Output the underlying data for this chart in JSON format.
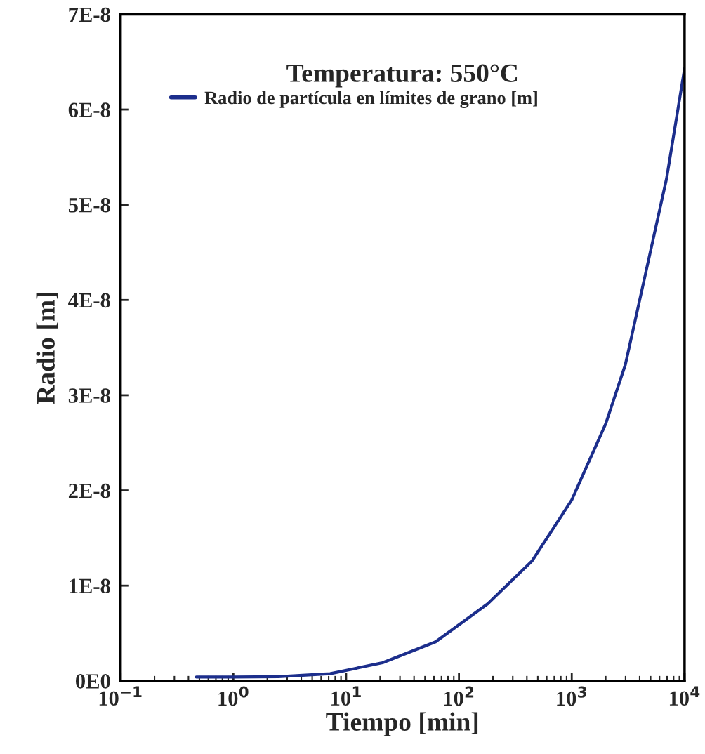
{
  "chart_data": {
    "type": "line",
    "title": "Temperatura: 550°C",
    "xlabel": "Tiempo [min]",
    "ylabel": "Radio [m]",
    "log": "x",
    "xlim": [
      0.1,
      10000
    ],
    "xticks": [
      {
        "value": 0.1,
        "label": "10$^{−1}$"
      },
      {
        "value": 1,
        "label": "10$^{0}$"
      },
      {
        "value": 10,
        "label": "10$^{1}$"
      },
      {
        "value": 100,
        "label": "10$^{2}$"
      },
      {
        "value": 1000,
        "label": "10$^{3}$"
      },
      {
        "value": 10000,
        "label": "10$^{4}$"
      }
    ],
    "ylim": [
      0,
      7e-08
    ],
    "yticks": [
      {
        "value": 0,
        "label": "0E0"
      },
      {
        "value": 1e-08,
        "label": "1E-8"
      },
      {
        "value": 2e-08,
        "label": "2E-8"
      },
      {
        "value": 3e-08,
        "label": "3E-8"
      },
      {
        "value": 4e-08,
        "label": "4E-8"
      },
      {
        "value": 5e-08,
        "label": "5E-8"
      },
      {
        "value": 6e-08,
        "label": "6E-8"
      },
      {
        "value": 7e-08,
        "label": "7E-8"
      }
    ],
    "legend": "top left",
    "grid": false,
    "series": [
      {
        "name": "Radio de partícula en límites de grano [m]",
        "color": "#1c2e8c",
        "x": [
          0.47,
          1,
          2.5,
          7.2,
          21,
          62,
          180,
          445,
          1000,
          2000,
          2985,
          4325,
          6940,
          10000
        ],
        "values": [
          4e-10,
          4e-10,
          4.4e-10,
          7.5e-10,
          1.9e-09,
          4.1e-09,
          8.1e-09,
          1.26e-08,
          1.9e-08,
          2.7e-08,
          3.32e-08,
          4.18e-08,
          5.28e-08,
          6.43e-08
        ]
      }
    ]
  }
}
